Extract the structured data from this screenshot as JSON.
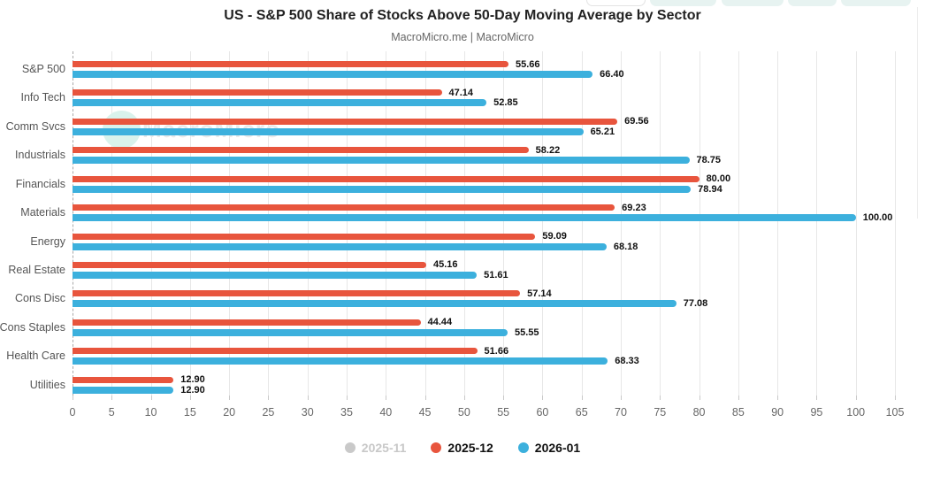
{
  "watermark": {
    "text": "MacroMicro"
  },
  "colors": {
    "series_disabled": "#c9c9c9",
    "series_red": "#e8553d",
    "series_blue": "#3cb0dd",
    "gridline": "#e7e7e7",
    "axis_dashed": "#a9a9a9",
    "toolbar_button_bg": "#e7f3f1"
  },
  "chart_data": {
    "type": "bar",
    "orientation": "horizontal",
    "title": "US - S&P 500 Share of Stocks Above 50-Day Moving Average by Sector",
    "subtitle": "MacroMicro.me | MacroMicro",
    "categories": [
      "S&P 500",
      "Info Tech",
      "Comm Svcs",
      "Industrials",
      "Financials",
      "Materials",
      "Energy",
      "Real Estate",
      "Cons Disc",
      "Cons Staples",
      "Health Care",
      "Utilities"
    ],
    "series": [
      {
        "name": "2025-11",
        "color": "#c9c9c9",
        "visible": false,
        "values": []
      },
      {
        "name": "2025-12",
        "color": "#e8553d",
        "visible": true,
        "values": [
          55.66,
          47.14,
          69.56,
          58.22,
          80.0,
          69.23,
          59.09,
          45.16,
          57.14,
          44.44,
          51.66,
          12.9
        ]
      },
      {
        "name": "2026-01",
        "color": "#3cb0dd",
        "visible": true,
        "values": [
          66.4,
          52.85,
          65.21,
          78.75,
          78.94,
          100.0,
          68.18,
          51.61,
          77.08,
          55.55,
          68.33,
          12.9
        ]
      }
    ],
    "xlim": [
      0,
      105
    ],
    "x_tick_step": 5,
    "x_tick_labels": [
      "0",
      "5",
      "10",
      "15",
      "20",
      "25",
      "30",
      "35",
      "40",
      "45",
      "50",
      "55",
      "60",
      "65",
      "70",
      "75",
      "80",
      "85",
      "90",
      "95",
      "100",
      "105"
    ],
    "grid": true,
    "legend_position": "bottom",
    "value_labels": true,
    "value_label_decimals": 2
  }
}
